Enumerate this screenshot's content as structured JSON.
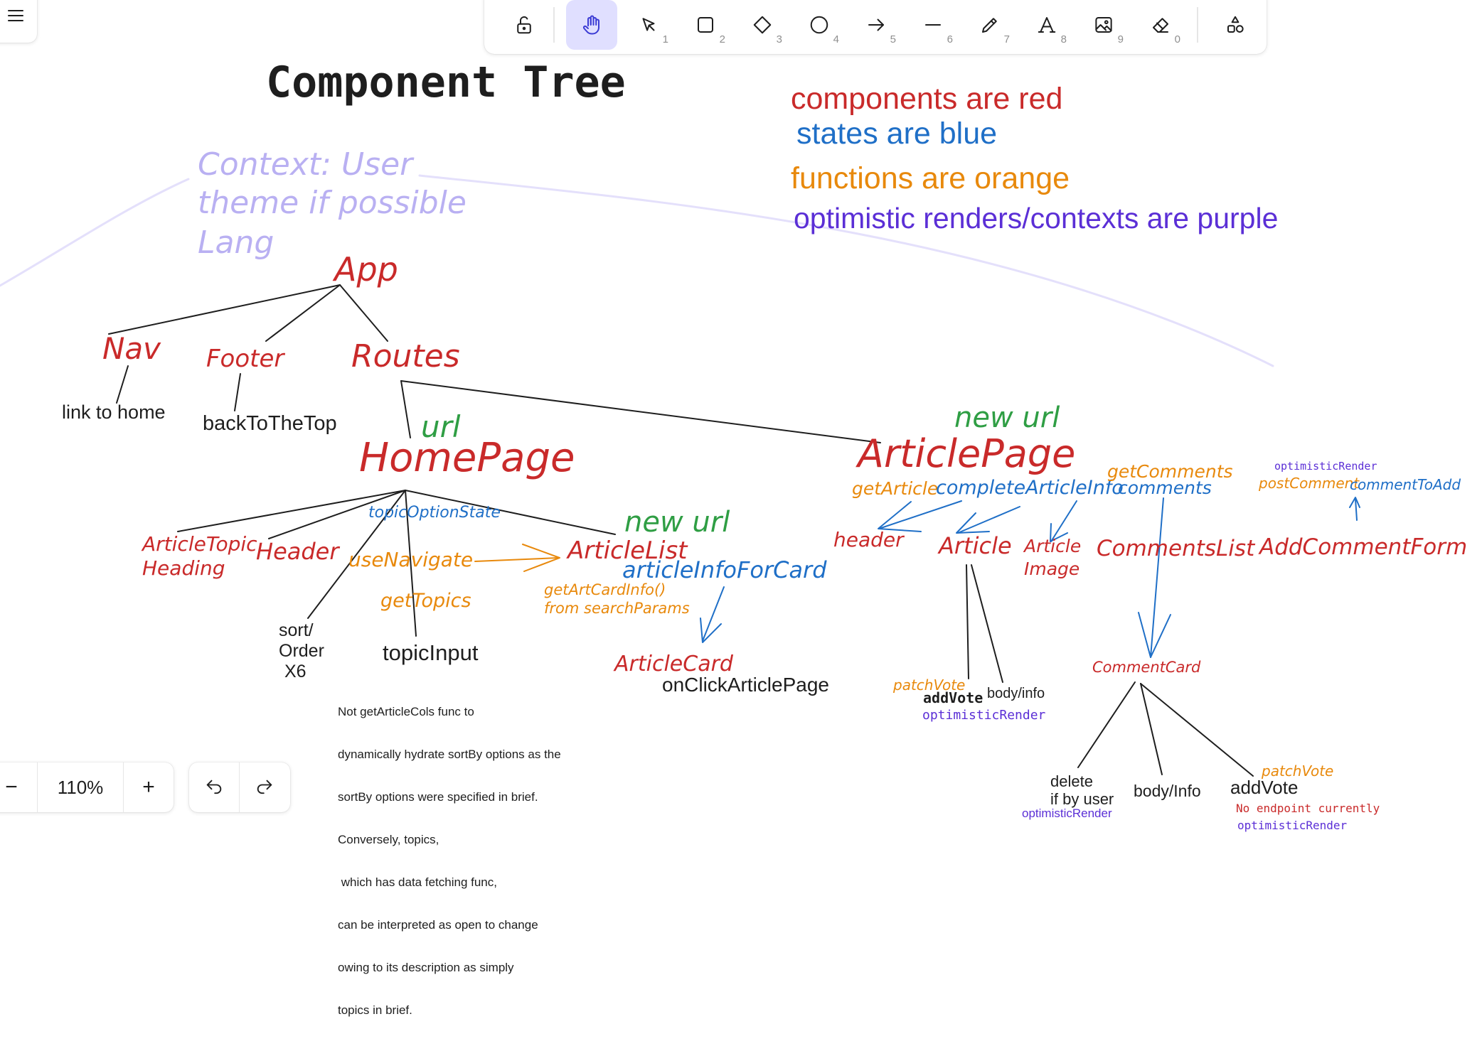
{
  "toolbar": {
    "tools": [
      {
        "name": "lock",
        "key": ""
      },
      {
        "name": "hand",
        "key": ""
      },
      {
        "name": "selection",
        "key": "1"
      },
      {
        "name": "rectangle",
        "key": "2"
      },
      {
        "name": "diamond",
        "key": "3"
      },
      {
        "name": "ellipse",
        "key": "4"
      },
      {
        "name": "arrow",
        "key": "5"
      },
      {
        "name": "line",
        "key": "6"
      },
      {
        "name": "draw",
        "key": "7"
      },
      {
        "name": "text",
        "key": "8"
      },
      {
        "name": "image",
        "key": "9"
      },
      {
        "name": "eraser",
        "key": "0"
      },
      {
        "name": "more-shapes",
        "key": ""
      }
    ],
    "active_tool": "hand"
  },
  "zoom": {
    "value": "110%",
    "minus": "−",
    "plus": "+"
  },
  "canvas": {
    "title": "Component Tree",
    "legend": {
      "components": "components are red",
      "states": "states are blue",
      "functions": "functions are orange",
      "optimistic": "optimistic renders/contexts are purple"
    },
    "context_note": {
      "line1": "Context: User",
      "line2": "theme if possible",
      "line3": "Lang"
    },
    "nodes": {
      "app": "App",
      "nav": "Nav",
      "footer": "Footer",
      "routes": "Routes",
      "link_to_home": "link to home",
      "back_to_top": "backToTheTop",
      "url": "url",
      "homepage": "HomePage",
      "new_url_article": "new url",
      "articlepage": "ArticlePage",
      "article_topic_heading_1": "ArticleTopic",
      "article_topic_heading_2": "Heading",
      "header": "Header",
      "topic_option_state": "topicOptionState",
      "use_navigate": "useNavigate",
      "new_url_list": "new url",
      "article_list": "ArticleList",
      "article_info_for_card": "articleInfoForCard",
      "get_art_card_info_1": "getArtCardInfo()",
      "get_art_card_info_2": "from searchParams",
      "get_topics": "getTopics",
      "sort_1": "sort/",
      "sort_2": "Order",
      "sort_3": "X6",
      "topic_input": "topicInput",
      "article_card": "ArticleCard",
      "on_click_article_page": "onClickArticlePage",
      "get_article": "getArticle",
      "complete_article_info": "completeArticleInfo",
      "get_comments": "getComments",
      "comments": "comments",
      "optimistic_render_top": "optimisticRender",
      "post_comment": "postComment",
      "comment_to_add": "commentToAdd",
      "header_lower": "header",
      "article": "Article",
      "article_image_1": "Article",
      "article_image_2": "Image",
      "comments_list": "CommentsList",
      "add_comment_form": "AddCommentForm",
      "patch_vote_article": "patchVote",
      "add_vote_article": "addVote",
      "body_info_article": "body/info",
      "optimistic_render_article": "optimisticRender",
      "comment_card": "CommentCard",
      "delete_1": "delete",
      "delete_2": "if by user",
      "optimistic_render_delete": "optimisticRender",
      "body_info_comment": "body/Info",
      "patch_vote_comment": "patchVote",
      "add_vote_comment": "addVote",
      "no_endpoint": "No endpoint currently",
      "optimistic_render_comment": "optimisticRender"
    },
    "note_lines": [
      "Not getArticleCols func to",
      "dynamically hydrate sortBy options as the",
      "sortBy options were specified in brief.",
      "Conversely, topics,",
      " which has data fetching func,",
      "can be interpreted as open to change",
      "owing to its description as simply",
      "topics in brief."
    ]
  },
  "colors": {
    "red": "#c92a2a",
    "blue": "#1f6fc7",
    "orange": "#e8890c",
    "purple": "#5b2fd6",
    "green": "#2f9e44",
    "lavender": "#b9b0f2",
    "active_tool_bg": "#e0dfff"
  }
}
